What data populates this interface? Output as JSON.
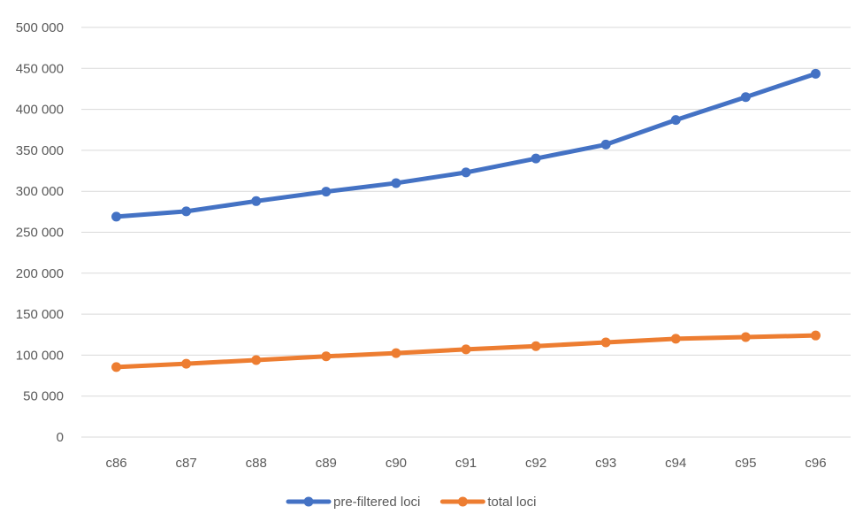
{
  "chart_data": {
    "type": "line",
    "title": "",
    "xlabel": "",
    "ylabel": "",
    "categories": [
      "c86",
      "c87",
      "c88",
      "c89",
      "c90",
      "c91",
      "c92",
      "c93",
      "c94",
      "c95",
      "c96"
    ],
    "y_tick_labels": [
      "0",
      "50 000",
      "100 000",
      "150 000",
      "200 000",
      "250 000",
      "300 000",
      "350 000",
      "400 000",
      "450 000",
      "500 000"
    ],
    "y_tick_values": [
      0,
      50000,
      100000,
      150000,
      200000,
      250000,
      300000,
      350000,
      400000,
      450000,
      500000
    ],
    "ylim": [
      0,
      500000
    ],
    "grid": true,
    "legend_position": "bottom",
    "series": [
      {
        "name": "pre-filtered loci",
        "color": "#4472C4",
        "values": [
          269000,
          275500,
          288000,
          299500,
          310000,
          323000,
          340000,
          357000,
          387000,
          415000,
          443500
        ]
      },
      {
        "name": "total loci",
        "color": "#ED7D31",
        "values": [
          85500,
          89500,
          94000,
          98500,
          102500,
          107000,
          111000,
          115500,
          120000,
          122000,
          124000
        ]
      }
    ]
  }
}
